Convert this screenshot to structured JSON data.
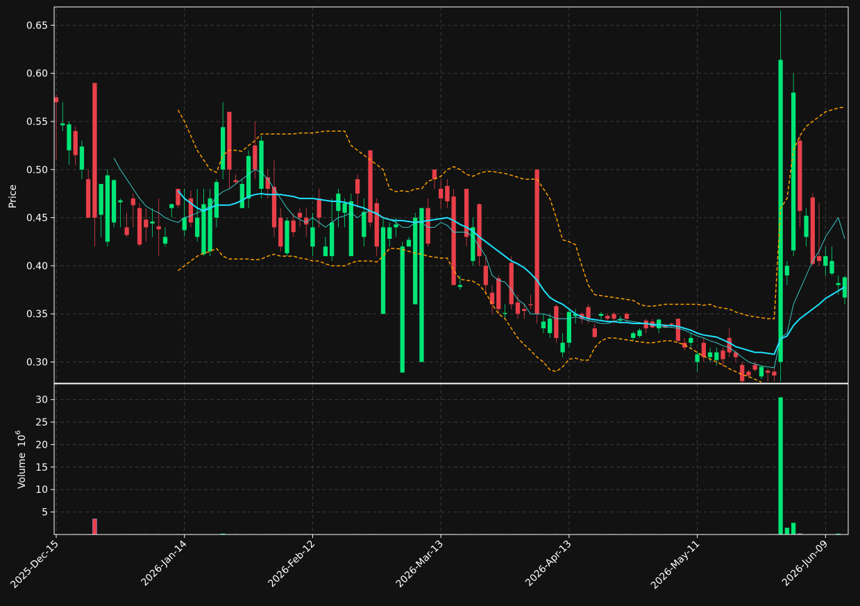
{
  "chart_data": {
    "type": "candlestick",
    "ylabel": "Price",
    "volume_ylabel": "Volume",
    "volume_unit_base": "10",
    "volume_unit_exponent": "6",
    "up_color": "#00e676",
    "down_color": "#e8404a",
    "grid": true,
    "categories": [
      "2025-Dec-15",
      null,
      null,
      null,
      null,
      null,
      null,
      null,
      null,
      null,
      null,
      null,
      null,
      null,
      null,
      null,
      null,
      null,
      null,
      null,
      "2026-Jan-14",
      null,
      null,
      null,
      null,
      null,
      null,
      null,
      null,
      null,
      null,
      null,
      null,
      null,
      null,
      null,
      null,
      null,
      null,
      null,
      "2026-Feb-12",
      null,
      null,
      null,
      null,
      null,
      null,
      null,
      null,
      null,
      null,
      null,
      null,
      null,
      null,
      null,
      null,
      null,
      null,
      null,
      "2026-Mar-13",
      null,
      null,
      null,
      null,
      null,
      null,
      null,
      null,
      null,
      null,
      null,
      null,
      null,
      null,
      null,
      null,
      null,
      null,
      null,
      "2026-Apr-13",
      null,
      null,
      null,
      null,
      null,
      null,
      null,
      null,
      null,
      null,
      null,
      null,
      null,
      null,
      null,
      null,
      null,
      null,
      null,
      "2026-May-11",
      null,
      null,
      null,
      null,
      null,
      null,
      null,
      null,
      null,
      null,
      null,
      null,
      null,
      null,
      null,
      null,
      null,
      null,
      null,
      "2026-Jun-09",
      null,
      null,
      null
    ],
    "open": [
      0.575,
      0.546,
      0.52,
      0.54,
      0.5,
      0.49,
      0.59,
      0.453,
      0.425,
      0.445,
      0.466,
      0.44,
      0.47,
      0.46,
      0.448,
      0.444,
      0.441,
      0.423,
      0.46,
      0.48,
      0.437,
      0.47,
      0.43,
      0.412,
      0.415,
      0.45,
      0.5,
      0.56,
      0.489,
      0.46,
      0.47,
      0.525,
      0.48,
      0.492,
      0.482,
      0.45,
      0.413,
      0.447,
      0.455,
      0.45,
      0.42,
      0.47,
      0.41,
      0.41,
      0.457,
      0.455,
      0.41,
      0.49,
      0.43,
      0.52,
      0.465,
      0.35,
      0.428,
      0.44,
      0.289,
      0.42,
      0.36,
      0.3,
      0.46,
      0.5,
      0.48,
      0.483,
      0.472,
      0.378,
      0.48,
      0.405,
      0.464,
      0.4,
      0.372,
      0.387,
      0.35,
      0.403,
      0.362,
      0.355,
      0.36,
      0.5,
      0.335,
      0.33,
      0.358,
      0.31,
      0.32,
      0.348,
      0.35,
      0.357,
      0.335,
      0.348,
      0.348,
      0.35,
      0.343,
      0.35,
      0.325,
      0.327,
      0.343,
      0.342,
      0.335,
      0.338,
      0.34,
      0.345,
      0.32,
      0.32,
      0.3,
      0.32,
      0.305,
      0.302,
      0.312,
      0.325,
      0.31,
      0.297,
      0.29,
      0.297,
      0.285,
      0.291,
      0.29,
      0.3,
      0.39,
      0.416,
      0.53,
      0.43,
      0.471,
      0.41,
      0.4,
      0.392,
      0.38,
      0.367
    ],
    "high": [
      0.578,
      0.57,
      0.55,
      0.545,
      0.53,
      0.5,
      0.59,
      0.485,
      0.5,
      0.49,
      0.47,
      0.455,
      0.475,
      0.465,
      0.46,
      0.46,
      0.47,
      0.44,
      0.465,
      0.48,
      0.48,
      0.478,
      0.48,
      0.48,
      0.48,
      0.49,
      0.57,
      0.56,
      0.495,
      0.49,
      0.52,
      0.55,
      0.535,
      0.5,
      0.51,
      0.46,
      0.45,
      0.455,
      0.46,
      0.46,
      0.455,
      0.48,
      0.43,
      0.47,
      0.48,
      0.47,
      0.475,
      0.495,
      0.47,
      0.52,
      0.47,
      0.45,
      0.445,
      0.45,
      0.425,
      0.43,
      0.455,
      0.46,
      0.47,
      0.5,
      0.49,
      0.49,
      0.48,
      0.39,
      0.48,
      0.45,
      0.465,
      0.41,
      0.38,
      0.39,
      0.36,
      0.41,
      0.37,
      0.36,
      0.37,
      0.5,
      0.35,
      0.35,
      0.36,
      0.33,
      0.355,
      0.355,
      0.352,
      0.36,
      0.34,
      0.352,
      0.35,
      0.352,
      0.348,
      0.352,
      0.332,
      0.335,
      0.345,
      0.345,
      0.345,
      0.34,
      0.341,
      0.345,
      0.325,
      0.33,
      0.31,
      0.325,
      0.315,
      0.315,
      0.315,
      0.335,
      0.312,
      0.3,
      0.292,
      0.3,
      0.296,
      0.293,
      0.295,
      0.665,
      0.405,
      0.6,
      0.535,
      0.46,
      0.475,
      0.465,
      0.42,
      0.42,
      0.39,
      0.39
    ],
    "low": [
      0.51,
      0.54,
      0.505,
      0.505,
      0.49,
      0.45,
      0.42,
      0.43,
      0.42,
      0.44,
      0.44,
      0.43,
      0.44,
      0.42,
      0.425,
      0.43,
      0.41,
      0.42,
      0.45,
      0.46,
      0.43,
      0.44,
      0.425,
      0.41,
      0.41,
      0.44,
      0.49,
      0.48,
      0.485,
      0.46,
      0.46,
      0.49,
      0.47,
      0.47,
      0.43,
      0.415,
      0.41,
      0.43,
      0.44,
      0.43,
      0.41,
      0.44,
      0.41,
      0.405,
      0.44,
      0.44,
      0.41,
      0.46,
      0.42,
      0.44,
      0.41,
      0.35,
      0.42,
      0.43,
      0.289,
      0.42,
      0.36,
      0.3,
      0.42,
      0.48,
      0.46,
      0.46,
      0.38,
      0.375,
      0.42,
      0.4,
      0.4,
      0.37,
      0.35,
      0.35,
      0.345,
      0.355,
      0.345,
      0.345,
      0.355,
      0.34,
      0.33,
      0.325,
      0.32,
      0.305,
      0.315,
      0.34,
      0.34,
      0.34,
      0.325,
      0.344,
      0.342,
      0.34,
      0.34,
      0.34,
      0.322,
      0.325,
      0.33,
      0.335,
      0.33,
      0.335,
      0.336,
      0.32,
      0.312,
      0.315,
      0.29,
      0.3,
      0.3,
      0.296,
      0.295,
      0.305,
      0.3,
      0.278,
      0.283,
      0.29,
      0.282,
      0.28,
      0.28,
      0.28,
      0.38,
      0.41,
      0.44,
      0.42,
      0.4,
      0.4,
      0.39,
      0.39,
      0.37,
      0.36
    ],
    "close": [
      0.57,
      0.548,
      0.547,
      0.515,
      0.524,
      0.45,
      0.45,
      0.485,
      0.494,
      0.489,
      0.468,
      0.432,
      0.463,
      0.422,
      0.44,
      0.446,
      0.438,
      0.43,
      0.464,
      0.463,
      0.45,
      0.445,
      0.45,
      0.464,
      0.47,
      0.487,
      0.544,
      0.5,
      0.487,
      0.485,
      0.514,
      0.5,
      0.53,
      0.48,
      0.44,
      0.42,
      0.447,
      0.435,
      0.45,
      0.443,
      0.44,
      0.45,
      0.42,
      0.445,
      0.475,
      0.465,
      0.467,
      0.475,
      0.456,
      0.445,
      0.42,
      0.44,
      0.44,
      0.443,
      0.42,
      0.427,
      0.45,
      0.46,
      0.423,
      0.49,
      0.47,
      0.467,
      0.38,
      0.38,
      0.43,
      0.44,
      0.41,
      0.38,
      0.36,
      0.355,
      0.351,
      0.36,
      0.35,
      0.353,
      0.359,
      0.35,
      0.342,
      0.345,
      0.325,
      0.32,
      0.352,
      0.35,
      0.345,
      0.345,
      0.326,
      0.35,
      0.345,
      0.345,
      0.344,
      0.345,
      0.33,
      0.333,
      0.335,
      0.336,
      0.344,
      0.336,
      0.339,
      0.322,
      0.315,
      0.325,
      0.308,
      0.305,
      0.31,
      0.31,
      0.303,
      0.31,
      0.305,
      0.28,
      0.286,
      0.292,
      0.295,
      0.289,
      0.286,
      0.614,
      0.4,
      0.58,
      0.457,
      0.452,
      0.402,
      0.405,
      0.41,
      0.405,
      0.382,
      0.388
    ],
    "volume": [
      0.05,
      0.05,
      0.05,
      0.05,
      0.05,
      0.05,
      3.5,
      0.05,
      0.05,
      0.05,
      0.05,
      0.05,
      0.05,
      0.05,
      0.05,
      0.05,
      0.05,
      0.05,
      0.05,
      0.05,
      0.05,
      0.05,
      0.05,
      0.05,
      0.05,
      0.05,
      0.2,
      0.05,
      0.05,
      0.05,
      0.05,
      0.05,
      0.05,
      0.05,
      0.05,
      0.05,
      0.05,
      0.05,
      0.05,
      0.05,
      0.05,
      0.05,
      0.05,
      0.05,
      0.05,
      0.05,
      0.05,
      0.05,
      0.05,
      0.05,
      0.05,
      0.05,
      0.05,
      0.05,
      0.05,
      0.05,
      0.05,
      0.05,
      0.05,
      0.05,
      0.05,
      0.05,
      0.05,
      0.05,
      0.05,
      0.05,
      0.05,
      0.05,
      0.05,
      0.05,
      0.05,
      0.05,
      0.05,
      0.05,
      0.05,
      0.05,
      0.05,
      0.05,
      0.05,
      0.05,
      0.05,
      0.05,
      0.05,
      0.05,
      0.05,
      0.05,
      0.05,
      0.05,
      0.05,
      0.05,
      0.05,
      0.05,
      0.05,
      0.05,
      0.05,
      0.05,
      0.05,
      0.05,
      0.05,
      0.05,
      0.05,
      0.05,
      0.05,
      0.05,
      0.05,
      0.05,
      0.05,
      0.05,
      0.05,
      0.05,
      0.05,
      0.05,
      0.05,
      30.5,
      1.5,
      2.6,
      0.2,
      0.05,
      0.05,
      0.05,
      0.05,
      0.05,
      0.2,
      0.05
    ],
    "lines": [
      {
        "color": "#1ee3ff",
        "style": "solid",
        "values": [
          null,
          null,
          null,
          null,
          null,
          null,
          null,
          null,
          null,
          null,
          null,
          null,
          null,
          null,
          null,
          null,
          null,
          null,
          null,
          0.478,
          0.47,
          0.465,
          0.46,
          0.457,
          0.46,
          0.463,
          0.463,
          0.463,
          0.465,
          0.468,
          0.472,
          0.474,
          0.475,
          0.474,
          0.474,
          0.474,
          0.473,
          0.472,
          0.47,
          0.47,
          0.47,
          0.469,
          0.468,
          0.467,
          0.467,
          0.466,
          0.464,
          0.462,
          0.46,
          0.457,
          0.454,
          0.45,
          0.448,
          0.447,
          0.447,
          0.446,
          0.445,
          0.446,
          0.447,
          0.448,
          0.449,
          0.45,
          0.447,
          0.443,
          0.44,
          0.436,
          0.43,
          0.425,
          0.42,
          0.415,
          0.41,
          0.405,
          0.402,
          0.398,
          0.392,
          0.385,
          0.375,
          0.367,
          0.363,
          0.36,
          0.355,
          0.35,
          0.347,
          0.345,
          0.344,
          0.343,
          0.342,
          0.342,
          0.341,
          0.341,
          0.34,
          0.34,
          0.34,
          0.339,
          0.339,
          0.338,
          0.338,
          0.337,
          0.335,
          0.333,
          0.33,
          0.328,
          0.327,
          0.326,
          0.323,
          0.32,
          0.316,
          0.314,
          0.312,
          0.31,
          0.31,
          0.309,
          0.308,
          0.324,
          0.327,
          0.338,
          0.345,
          0.35,
          0.355,
          0.36,
          0.366,
          0.37,
          0.374,
          0.378
        ]
      },
      {
        "color": "#3fd8d8",
        "style": "solid",
        "values": [
          null,
          null,
          null,
          null,
          null,
          null,
          null,
          null,
          null,
          0.512,
          0.5,
          0.49,
          0.48,
          0.47,
          0.462,
          0.458,
          0.455,
          0.45,
          0.447,
          0.445,
          0.45,
          0.452,
          0.455,
          0.458,
          0.462,
          0.472,
          0.477,
          0.48,
          0.485,
          0.49,
          0.495,
          0.5,
          0.497,
          0.49,
          0.48,
          0.47,
          0.46,
          0.452,
          0.448,
          0.445,
          0.45,
          0.445,
          0.44,
          0.445,
          0.45,
          0.452,
          0.455,
          0.45,
          0.455,
          0.457,
          0.455,
          0.45,
          0.448,
          0.445,
          0.44,
          0.44,
          0.445,
          0.445,
          0.44,
          0.44,
          0.445,
          0.442,
          0.435,
          0.435,
          0.435,
          0.43,
          0.42,
          0.41,
          0.39,
          0.385,
          0.383,
          0.375,
          0.365,
          0.36,
          0.35,
          0.35,
          0.35,
          0.348,
          0.345,
          0.345,
          0.345,
          0.347,
          0.345,
          0.343,
          0.342,
          0.34,
          0.34,
          0.342,
          0.345,
          0.343,
          0.342,
          0.341,
          0.34,
          0.338,
          0.337,
          0.336,
          0.336,
          0.335,
          0.333,
          0.33,
          0.327,
          0.325,
          0.322,
          0.32,
          0.317,
          0.315,
          0.31,
          0.305,
          0.3,
          0.298,
          0.296,
          0.295,
          0.294,
          0.325,
          0.33,
          0.36,
          0.375,
          0.39,
          0.405,
          0.415,
          0.43,
          0.44,
          0.45,
          0.428
        ]
      },
      {
        "color": "#ffa000",
        "style": "dashed",
        "values": [
          null,
          null,
          null,
          null,
          null,
          null,
          null,
          null,
          null,
          null,
          null,
          null,
          null,
          null,
          null,
          null,
          null,
          null,
          null,
          0.562,
          0.55,
          0.535,
          0.52,
          0.51,
          0.5,
          0.497,
          0.515,
          0.52,
          0.52,
          0.519,
          0.525,
          0.53,
          0.537,
          0.537,
          0.537,
          0.537,
          0.537,
          0.537,
          0.538,
          0.538,
          0.538,
          0.539,
          0.54,
          0.54,
          0.54,
          0.54,
          0.525,
          0.52,
          0.515,
          0.51,
          0.505,
          0.5,
          0.48,
          0.477,
          0.478,
          0.477,
          0.48,
          0.48,
          0.488,
          0.49,
          0.493,
          0.5,
          0.503,
          0.5,
          0.495,
          0.493,
          0.496,
          0.498,
          0.498,
          0.497,
          0.496,
          0.494,
          0.492,
          0.49,
          0.49,
          0.49,
          0.48,
          0.47,
          0.45,
          0.427,
          0.425,
          0.422,
          0.4,
          0.38,
          0.37,
          0.369,
          0.368,
          0.367,
          0.366,
          0.365,
          0.364,
          0.36,
          0.358,
          0.358,
          0.359,
          0.36,
          0.36,
          0.36,
          0.36,
          0.36,
          0.36,
          0.359,
          0.36,
          0.357,
          0.356,
          0.355,
          0.352,
          0.35,
          0.348,
          0.347,
          0.346,
          0.345,
          0.345,
          0.46,
          0.47,
          0.52,
          0.535,
          0.545,
          0.55,
          0.555,
          0.56,
          0.562,
          0.564,
          0.565
        ]
      },
      {
        "color": "#ffa000",
        "style": "dashed",
        "values": [
          null,
          null,
          null,
          null,
          null,
          null,
          null,
          null,
          null,
          null,
          null,
          null,
          null,
          null,
          null,
          null,
          null,
          null,
          null,
          0.395,
          0.4,
          0.405,
          0.41,
          0.413,
          0.415,
          0.418,
          0.41,
          0.407,
          0.407,
          0.407,
          0.407,
          0.406,
          0.407,
          0.41,
          0.412,
          0.41,
          0.41,
          0.41,
          0.408,
          0.407,
          0.405,
          0.405,
          0.402,
          0.4,
          0.4,
          0.4,
          0.403,
          0.405,
          0.405,
          0.405,
          0.404,
          0.41,
          0.418,
          0.418,
          0.417,
          0.415,
          0.413,
          0.412,
          0.41,
          0.409,
          0.408,
          0.408,
          0.395,
          0.386,
          0.385,
          0.384,
          0.38,
          0.372,
          0.36,
          0.35,
          0.345,
          0.335,
          0.325,
          0.318,
          0.312,
          0.305,
          0.3,
          0.292,
          0.29,
          0.295,
          0.303,
          0.304,
          0.302,
          0.302,
          0.315,
          0.322,
          0.325,
          0.325,
          0.324,
          0.323,
          0.322,
          0.321,
          0.32,
          0.32,
          0.321,
          0.322,
          0.322,
          0.32,
          0.318,
          0.314,
          0.31,
          0.306,
          0.303,
          0.3,
          0.297,
          0.293,
          0.29,
          0.287,
          0.285,
          0.282,
          0.279,
          null,
          null,
          null,
          null,
          null,
          null,
          null,
          null,
          null,
          null,
          null,
          null,
          null
        ]
      }
    ],
    "ylim": [
      0.278,
      0.669
    ],
    "yticks": [
      {
        "value": 0.3,
        "label": "0.30"
      },
      0.35,
      {
        "value": 0.4,
        "label": "0.40"
      },
      0.45,
      {
        "value": 0.5,
        "label": "0.50"
      },
      0.55,
      {
        "value": 0.6,
        "label": "0.60"
      },
      0.65
    ],
    "volume_ylim": [
      0,
      33.5
    ],
    "volume_yticks": [
      5,
      10,
      15,
      20,
      25,
      30
    ]
  }
}
